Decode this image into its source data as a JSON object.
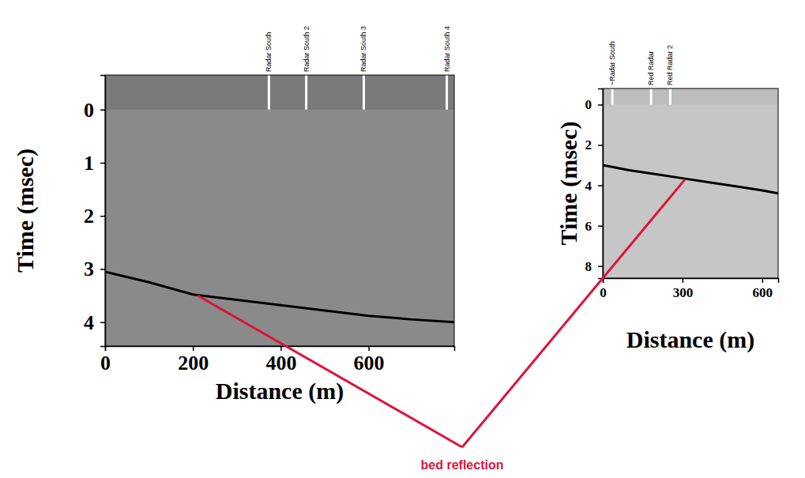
{
  "chart_data": [
    {
      "type": "line",
      "x_label": "Distance (m)",
      "y_label": "Time (msec)",
      "xlim": [
        0,
        795
      ],
      "xticks": [
        0,
        200,
        400,
        600
      ],
      "ylim": [
        4.45,
        -0.65
      ],
      "yticks": [
        0,
        1,
        2,
        3,
        4
      ],
      "series": [
        {
          "x": [
            0,
            100,
            200,
            300,
            400,
            500,
            600,
            700,
            795
          ],
          "values": [
            3.05,
            3.25,
            3.48,
            3.58,
            3.68,
            3.78,
            3.88,
            3.95,
            4.0
          ],
          "color": "#000000"
        }
      ],
      "annotations": [
        {
          "text": "Radar South",
          "x": 373
        },
        {
          "text": "Radar South 2",
          "x": 458
        },
        {
          "text": "Radar South 3",
          "x": 589
        },
        {
          "text": "Radar South 4",
          "x": 778
        }
      ],
      "pointer": {
        "x": 211,
        "y": 3.5
      }
    },
    {
      "type": "line",
      "x_label": "Distance (m)",
      "y_label": "Time (msec)",
      "xlim": [
        0,
        660
      ],
      "xticks": [
        0,
        300,
        600
      ],
      "ylim": [
        8.6,
        -0.8
      ],
      "yticks": [
        0,
        2,
        4,
        6,
        8
      ],
      "series": [
        {
          "x": [
            0,
            100,
            200,
            300,
            400,
            500,
            600,
            660
          ],
          "values": [
            3.0,
            3.25,
            3.45,
            3.65,
            3.85,
            4.05,
            4.25,
            4.4
          ],
          "color": "#000000"
        }
      ],
      "annotations": [
        {
          "text": "~Radar South",
          "x": 36
        },
        {
          "text": "Red Radar",
          "x": 182
        },
        {
          "text": "Red Radar 2",
          "x": 254
        }
      ],
      "pointer": {
        "x": 310,
        "y": 3.7
      }
    }
  ],
  "annotation": {
    "text": "bed reflection",
    "color": "#dc143c"
  }
}
